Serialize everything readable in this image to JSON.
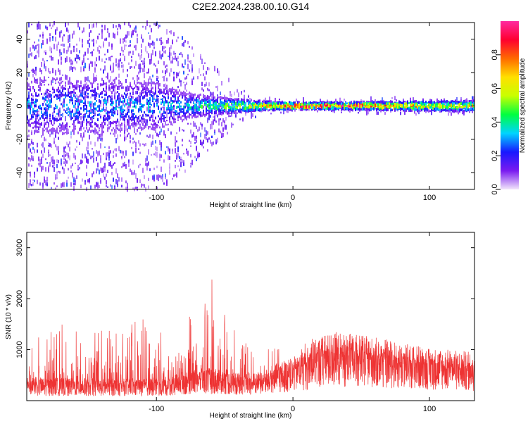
{
  "title": "C2E2.2024.238.00.10.G14",
  "chart_data": [
    {
      "type": "heatmap",
      "xlabel": "Height of straight line (km)",
      "ylabel": "Frequency (Hz)",
      "xlim": [
        -195,
        133
      ],
      "ylim": [
        -50,
        50
      ],
      "xticks": [
        -100,
        0,
        100
      ],
      "yticks": [
        -40,
        -20,
        0,
        20,
        40
      ],
      "colorbar": {
        "label": "Normalized spectral amplitude",
        "range": [
          0,
          1
        ],
        "ticks": [
          0.0,
          0.2,
          0.4,
          0.6,
          0.8
        ],
        "colormap": "rainbow",
        "colors": [
          "#f2e6fb",
          "#7a1bf0",
          "#1818ff",
          "#00d4ff",
          "#00ff40",
          "#c8ff00",
          "#ffe000",
          "#ff6a00",
          "#ff0030",
          "#ff2aa0"
        ]
      },
      "grid": false,
      "profile": {
        "description_points_x": [
          -195,
          -150,
          -100,
          -80,
          -60,
          -40,
          -20,
          0,
          40,
          80,
          133
        ],
        "core_halfwidth_hz": [
          12,
          12,
          10,
          6,
          4,
          3,
          2,
          1.5,
          1.5,
          2,
          2.5
        ],
        "peak_amplitude": [
          0.3,
          0.3,
          0.32,
          0.35,
          0.45,
          0.55,
          0.7,
          0.9,
          0.95,
          0.75,
          0.6
        ],
        "scatter_halfwidth_hz": [
          50,
          50,
          50,
          40,
          25,
          10,
          5,
          4,
          4,
          5,
          5
        ]
      }
    },
    {
      "type": "line",
      "xlabel": "Height of straight line (km)",
      "ylabel": "SNR (10 * v/v)",
      "xlim": [
        -195,
        133
      ],
      "ylim": [
        0,
        3300
      ],
      "xticks": [
        -100,
        0,
        100
      ],
      "yticks": [
        1000,
        2000,
        3000
      ],
      "color": "#ee3333",
      "grid": false,
      "envelope": {
        "x": [
          -195,
          -170,
          -140,
          -110,
          -90,
          -82,
          -75,
          -65,
          -60,
          -57,
          -54,
          -50,
          -40,
          -30,
          -20,
          -10,
          0,
          10,
          20,
          30,
          40,
          60,
          80,
          100,
          120,
          133
        ],
        "base": [
          300,
          300,
          290,
          290,
          320,
          380,
          420,
          420,
          430,
          430,
          420,
          400,
          350,
          360,
          400,
          500,
          560,
          700,
          850,
          900,
          880,
          830,
          760,
          700,
          660,
          640
        ],
        "peak": [
          1100,
          1500,
          1400,
          1600,
          1200,
          1650,
          1700,
          2000,
          2600,
          3300,
          2050,
          1800,
          1500,
          1000,
          1000,
          1050,
          1050,
          1200,
          1300,
          1250,
          1200,
          1100,
          1000,
          950,
          900,
          850
        ]
      }
    }
  ]
}
